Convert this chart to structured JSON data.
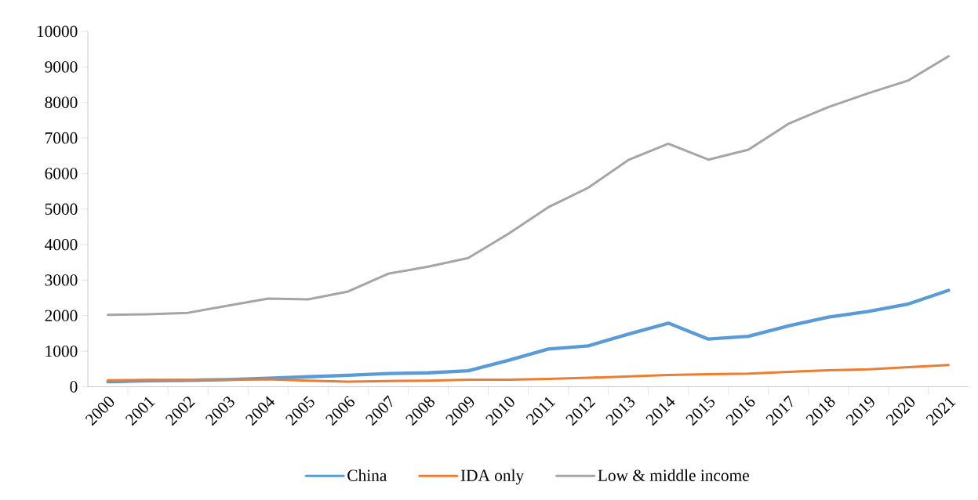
{
  "chart_data": {
    "type": "line",
    "categories": [
      "2000",
      "2001",
      "2002",
      "2003",
      "2004",
      "2005",
      "2006",
      "2007",
      "2008",
      "2009",
      "2010",
      "2011",
      "2012",
      "2013",
      "2014",
      "2015",
      "2016",
      "2017",
      "2018",
      "2019",
      "2020",
      "2021"
    ],
    "series": [
      {
        "name": "China",
        "color": "#5b9bd5",
        "values": [
          140,
          170,
          180,
          200,
          240,
          280,
          320,
          370,
          390,
          450,
          740,
          1060,
          1150,
          1480,
          1790,
          1340,
          1420,
          1710,
          1960,
          2120,
          2330,
          2710
        ]
      },
      {
        "name": "IDA only",
        "color": "#ed7d31",
        "values": [
          180,
          190,
          190,
          200,
          210,
          170,
          140,
          160,
          170,
          200,
          200,
          220,
          250,
          290,
          330,
          350,
          370,
          420,
          460,
          490,
          550,
          610
        ]
      },
      {
        "name": "Low & middle income",
        "color": "#a5a5a5",
        "values": [
          2020,
          2040,
          2080,
          2280,
          2480,
          2460,
          2680,
          3180,
          3380,
          3620,
          4300,
          5050,
          5600,
          6380,
          6840,
          6390,
          6670,
          7400,
          7870,
          8260,
          8620,
          9300
        ]
      }
    ],
    "ylim": [
      0,
      10000
    ],
    "yticks": [
      0,
      1000,
      2000,
      3000,
      4000,
      5000,
      6000,
      7000,
      8000,
      9000,
      10000
    ],
    "grid": false,
    "legend": "bottom",
    "marker": "none",
    "line_style": "solid"
  }
}
